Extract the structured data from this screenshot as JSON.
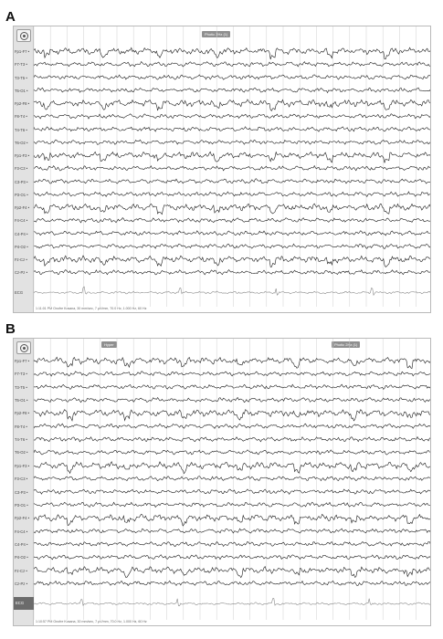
{
  "panels": [
    {
      "letter": "A",
      "marker_label": "Photic 2Hz (1)",
      "channels": [
        "Fp1-F7 •",
        "F7-T3 •",
        "T3-T5 •",
        "T5-O1 •",
        "Fp2-F8 •",
        "F8-T4 •",
        "T4-T6 •",
        "T6-O2 •",
        "Fp1-F3 •",
        "F3-C3 •",
        "C3-P3 •",
        "P3-O1 •",
        "Fp2-F4 •",
        "F4-C4 •",
        "C4-P4 •",
        "P4-O2 •",
        "Fz-Cz •",
        "Cz-Pz •",
        "ECG"
      ],
      "footer": "1:11:01 PM Onofre Kosana, 30 mm/sec, 7 µV/mm, 70.0 Hz, 1.000 Hz, 60 Hz"
    },
    {
      "letter": "B",
      "marker_label": "Hyper",
      "marker_label_2": "Photic 2Hz (1)",
      "channels": [
        "Fp1-F7 •",
        "F7-T3 •",
        "T3-T5 •",
        "T5-O1 •",
        "Fp2-F8 •",
        "F8-T4 •",
        "T4-T6 •",
        "T6-O2 •",
        "Fp1-F3 •",
        "F3-C3 •",
        "C3-P3 •",
        "P3-O1 •",
        "Fp2-F4 •",
        "F4-C4 •",
        "C4-P4 •",
        "P4-O2 •",
        "Fz-Cz •",
        "Cz-Pz •",
        "ECG"
      ],
      "footer": "1:10:57 PM Onofre Kosana, 30 mm/sec, 7 µV/mm, 70.0 Hz, 1.000 Hz, 60 Hz"
    }
  ],
  "colors": {
    "trace": "#1a1a1a",
    "ecg": "#8a8a8a",
    "grid": "#cfcfcf",
    "sidebar": "#e2e2e2"
  },
  "icons": {
    "target": "target-icon"
  }
}
